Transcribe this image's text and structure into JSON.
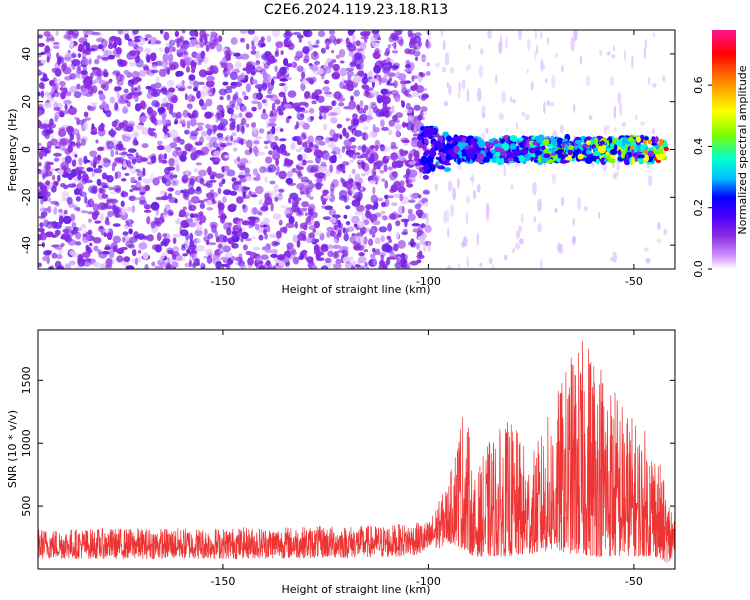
{
  "title": "C2E6.2024.119.23.18.R13",
  "chart_data": [
    {
      "type": "heatmap",
      "xlabel": "Height of straight line (km)",
      "ylabel": "Frequency (Hz)",
      "xlim": [
        -195,
        -40
      ],
      "ylim": [
        -50,
        50
      ],
      "x_ticks": [
        -150,
        -100,
        -50
      ],
      "y_ticks": [
        -40,
        -20,
        0,
        20,
        40
      ],
      "colorbar": {
        "label": "Normalized spectral amplitude",
        "range": [
          0,
          0.78
        ],
        "ticks": [
          0.0,
          0.2,
          0.4,
          0.6
        ],
        "colors": [
          "#ffffff",
          "#cc88ff",
          "#8a2be2",
          "#4b00ff",
          "#0000ff",
          "#00bfff",
          "#00ffd0",
          "#7cfc00",
          "#ffff00",
          "#ff8c00",
          "#ff0000",
          "#ff1493"
        ]
      },
      "features": [
        {
          "name": "noise",
          "x_range": [
            -195,
            -100
          ],
          "freq_range": [
            -50,
            50
          ],
          "amplitude": 0.1
        },
        {
          "name": "signal-band",
          "x_range": [
            -102,
            -42
          ],
          "center_freq": 0,
          "half_width": 5,
          "amplitude_range": [
            0.25,
            0.65
          ]
        }
      ],
      "grid": false
    },
    {
      "type": "line",
      "xlabel": "Height of straight line (km)",
      "ylabel": "SNR (10 * v/v)",
      "xlim": [
        -195,
        -40
      ],
      "ylim": [
        0,
        1900
      ],
      "x_ticks": [
        -150,
        -100,
        -50
      ],
      "y_ticks": [
        500,
        1000,
        1500
      ],
      "color": "#ee3333",
      "envelope": {
        "x": [
          -195,
          -150,
          -110,
          -100,
          -95,
          -91,
          -89,
          -85,
          -80,
          -75,
          -70,
          -65,
          -60,
          -55,
          -50,
          -45,
          -42
        ],
        "min": [
          80,
          80,
          90,
          120,
          200,
          150,
          100,
          100,
          100,
          120,
          150,
          120,
          100,
          100,
          100,
          100,
          50
        ],
        "max": [
          320,
          330,
          350,
          380,
          700,
          1420,
          700,
          1050,
          1200,
          900,
          1300,
          1750,
          1900,
          1500,
          1200,
          1050,
          600
        ]
      },
      "grid": false
    }
  ]
}
